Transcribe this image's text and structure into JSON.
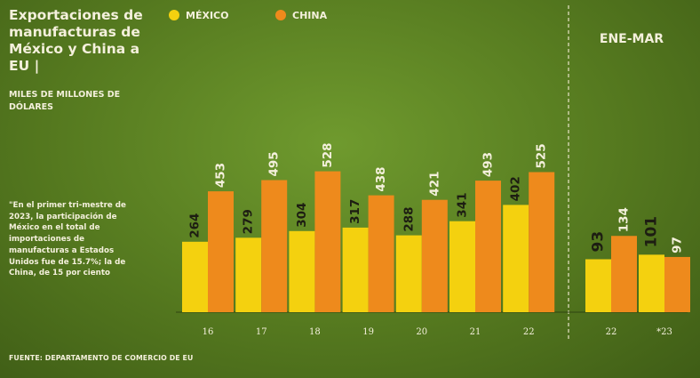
{
  "title": "Exportaciones de manufacturas de México y China a EU |",
  "subtitle": "MILES DE MILLONES DE DÓLARES",
  "note": "\"En el primer tri-mestre de 2023, la participación de México en el total de importaciones de manufacturas a Estados Unidos fue de 15.7%; la de China, de 15 por ciento",
  "source": "FUENTE: DEPARTAMENTO DE COMERCIO DE EU",
  "colors": {
    "mexico": "#f4d10f",
    "china": "#ee8a1c",
    "text": "#f4f0dc",
    "background": "#55791f"
  },
  "chart_data": [
    {
      "type": "bar",
      "categories": [
        "16",
        "17",
        "18",
        "19",
        "20",
        "21",
        "22"
      ],
      "series": [
        {
          "name": "MÉXICO",
          "values": [
            264,
            279,
            304,
            317,
            288,
            341,
            402
          ]
        },
        {
          "name": "CHINA",
          "values": [
            453,
            495,
            528,
            438,
            421,
            493,
            525
          ]
        }
      ],
      "legend": "top"
    },
    {
      "type": "bar",
      "title": "ENE-MAR",
      "categories": [
        "22",
        "*23"
      ],
      "series": [
        {
          "name": "MÉXICO",
          "values": [
            93,
            101
          ]
        },
        {
          "name": "CHINA",
          "values": [
            134,
            97
          ]
        }
      ]
    }
  ]
}
